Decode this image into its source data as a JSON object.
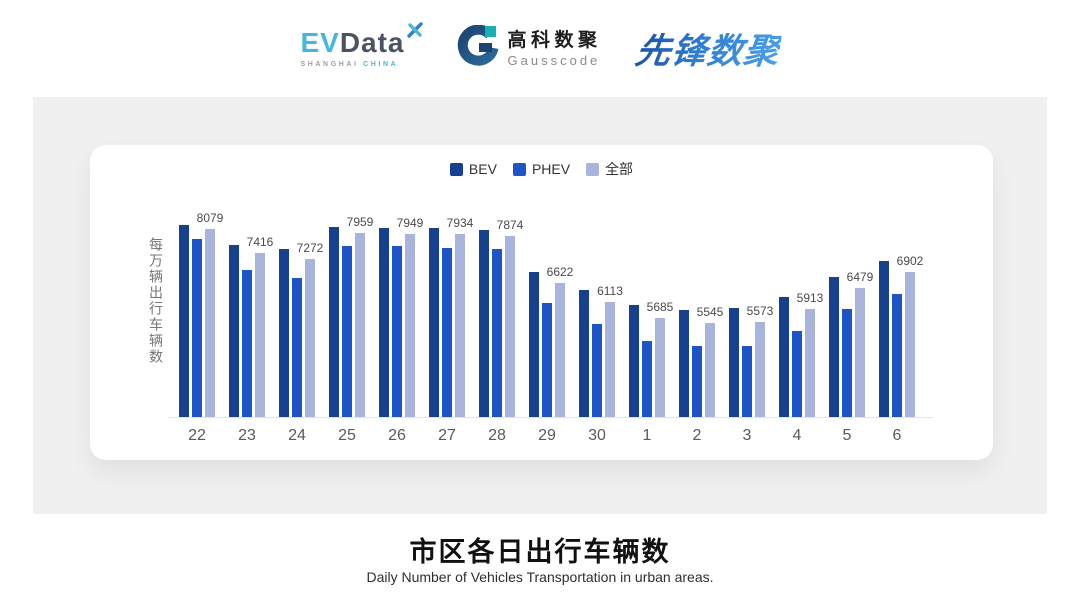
{
  "header": {
    "evdata": {
      "ev": "EV",
      "data": "Data",
      "tagline_left": "SHANGHAI",
      "tagline_right": "CHINA"
    },
    "gausscode": {
      "name_cn": "高科数聚",
      "name_en": "Gausscode"
    },
    "pioneer": {
      "name_cn": "先锋数聚"
    }
  },
  "chart_data": {
    "type": "bar",
    "title": "市区各日出行车辆数",
    "subtitle": "Daily Number of Vehicles Transportation in urban areas.",
    "ylabel": "每万辆出行车辆数",
    "categories": [
      "22",
      "23",
      "24",
      "25",
      "26",
      "27",
      "28",
      "29",
      "30",
      "1",
      "2",
      "3",
      "4",
      "5",
      "6"
    ],
    "series": [
      {
        "name": "BEV",
        "color": "#17418f",
        "values": [
          8190,
          7650,
          7545,
          8130,
          8110,
          8110,
          8040,
          6915,
          6435,
          6030,
          5900,
          5945,
          6240,
          6780,
          7210
        ]
      },
      {
        "name": "PHEV",
        "color": "#1e55c6",
        "values": [
          7815,
          6975,
          6760,
          7615,
          7605,
          7565,
          7545,
          6080,
          5520,
          5040,
          4915,
          4905,
          5310,
          5925,
          6330
        ]
      },
      {
        "name": "全部",
        "color": "#a9b4dd",
        "values": [
          8079,
          7416,
          7272,
          7959,
          7949,
          7934,
          7874,
          6622,
          6113,
          5685,
          5545,
          5573,
          5913,
          6479,
          6902
        ]
      }
    ],
    "data_labels": [
      8079,
      7416,
      7272,
      7959,
      7949,
      7934,
      7874,
      6622,
      6113,
      5685,
      5545,
      5573,
      5913,
      6479,
      6902
    ],
    "data_label_series": "全部",
    "ylim": [
      3000,
      8400
    ],
    "legend_position": "top-center",
    "grid": false,
    "axis_line_color": "#e3e3e3"
  },
  "footer": {
    "title": "市区各日出行车辆数",
    "subtitle": "Daily Number of Vehicles Transportation in urban areas."
  }
}
